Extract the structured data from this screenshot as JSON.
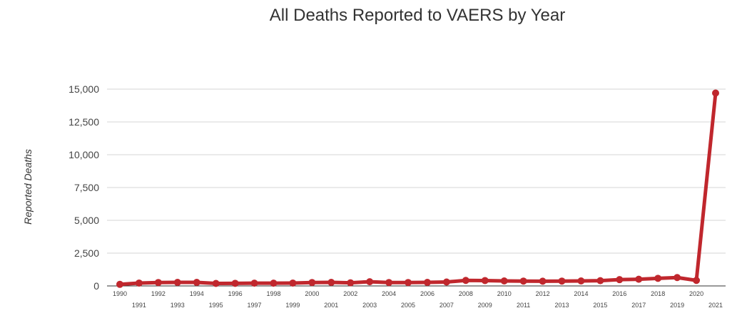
{
  "chart_data": {
    "type": "line",
    "title": "All Deaths Reported to VAERS by Year",
    "xlabel": "",
    "ylabel": "Reported Deaths",
    "ylim": [
      0,
      15000
    ],
    "yticks": [
      "0",
      "2,500",
      "5,000",
      "7,500",
      "10,000",
      "12,500",
      "15,000"
    ],
    "ytick_values": [
      0,
      2500,
      5000,
      7500,
      10000,
      12500,
      15000
    ],
    "grid": true,
    "x": [
      "1990",
      "1991",
      "1992",
      "1993",
      "1994",
      "1995",
      "1996",
      "1997",
      "1998",
      "1999",
      "2000",
      "2001",
      "2002",
      "2003",
      "2004",
      "2005",
      "2006",
      "2007",
      "2008",
      "2009",
      "2010",
      "2011",
      "2012",
      "2013",
      "2014",
      "2015",
      "2016",
      "2017",
      "2018",
      "2019",
      "2020",
      "2021"
    ],
    "series": [
      {
        "color": "#c0272d",
        "values": [
          120,
          220,
          260,
          270,
          270,
          190,
          200,
          210,
          210,
          220,
          260,
          270,
          240,
          320,
          260,
          260,
          270,
          300,
          420,
          410,
          380,
          370,
          360,
          370,
          380,
          400,
          480,
          510,
          580,
          640,
          420,
          14700
        ]
      }
    ]
  }
}
